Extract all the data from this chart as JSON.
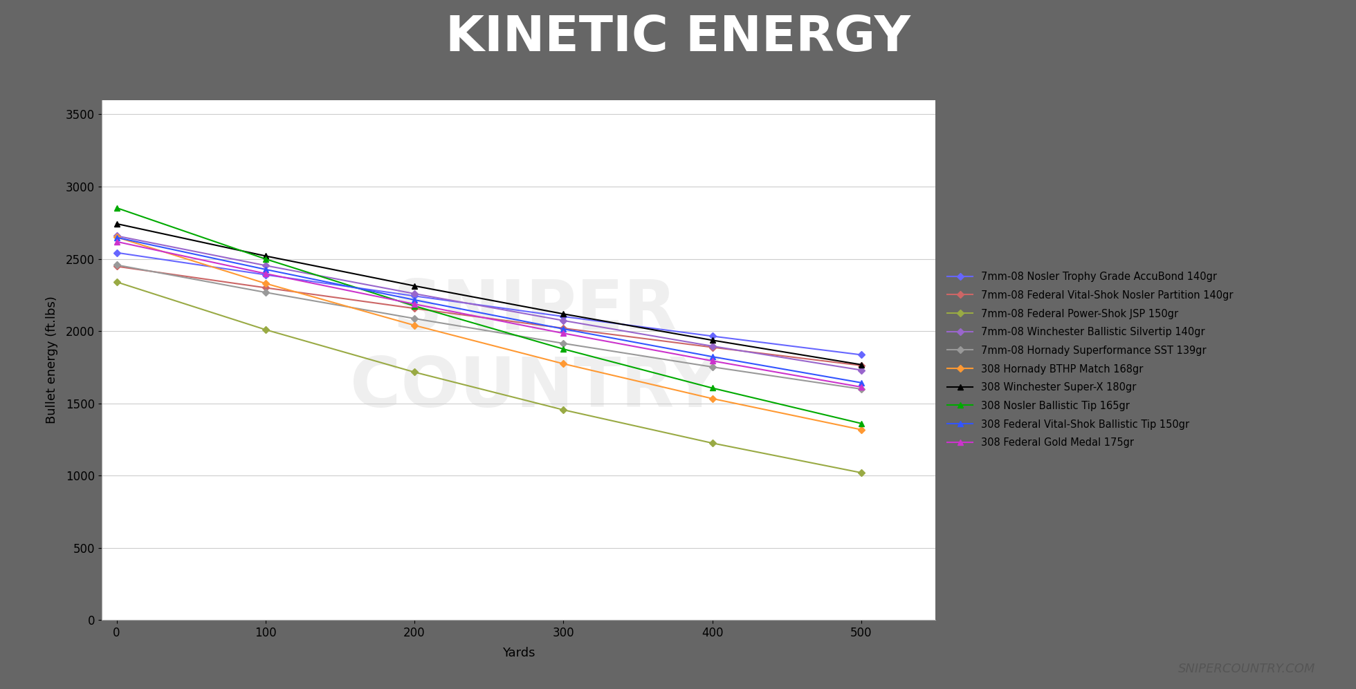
{
  "title": "KINETIC ENERGY",
  "xlabel": "Yards",
  "ylabel": "Bullet energy (ft.lbs)",
  "title_bg_color": "#666666",
  "salmon_bar_color": "#F07070",
  "plot_bg_color": "#ffffff",
  "yards": [
    0,
    100,
    200,
    300,
    400,
    500
  ],
  "series": [
    {
      "label": "7mm-08 Nosler Trophy Grade AccuBond 140gr",
      "color": "#6666FF",
      "marker": "D",
      "markersize": 5,
      "values": [
        2543,
        2390,
        2243,
        2101,
        1965,
        1836
      ]
    },
    {
      "label": "7mm-08 Federal Vital-Shok Nosler Partition 140gr",
      "color": "#CC6666",
      "marker": "D",
      "markersize": 5,
      "values": [
        2448,
        2300,
        2157,
        2020,
        1888,
        1762
      ]
    },
    {
      "label": "7mm-08 Federal Power-Shok JSP 150gr",
      "color": "#99AA44",
      "marker": "D",
      "markersize": 5,
      "values": [
        2340,
        2010,
        1716,
        1455,
        1225,
        1020
      ]
    },
    {
      "label": "7mm-08 Winchester Ballistic Silvertip 140gr",
      "color": "#9966CC",
      "marker": "D",
      "markersize": 5,
      "values": [
        2659,
        2454,
        2259,
        2073,
        1896,
        1730
      ]
    },
    {
      "label": "7mm-08 Hornady Superformance SST 139gr",
      "color": "#999999",
      "marker": "D",
      "markersize": 5,
      "values": [
        2458,
        2268,
        2087,
        1915,
        1752,
        1599
      ]
    },
    {
      "label": "308 Hornady BTHP Match 168gr",
      "color": "#FF9933",
      "marker": "D",
      "markersize": 5,
      "values": [
        2650,
        2330,
        2040,
        1774,
        1533,
        1318
      ]
    },
    {
      "label": "308 Winchester Super-X 180gr",
      "color": "#000000",
      "marker": "^",
      "markersize": 6,
      "values": [
        2743,
        2520,
        2313,
        2119,
        1937,
        1768
      ]
    },
    {
      "label": "308 Nosler Ballistic Tip 165gr",
      "color": "#00AA00",
      "marker": "^",
      "markersize": 6,
      "values": [
        2853,
        2499,
        2174,
        1876,
        1606,
        1361
      ]
    },
    {
      "label": "308 Federal Vital-Shok Ballistic Tip 150gr",
      "color": "#3355FF",
      "marker": "^",
      "markersize": 6,
      "values": [
        2648,
        2427,
        2216,
        2015,
        1823,
        1643
      ]
    },
    {
      "label": "308 Federal Gold Medal 175gr",
      "color": "#CC33CC",
      "marker": "^",
      "markersize": 6,
      "values": [
        2619,
        2398,
        2187,
        1985,
        1794,
        1613
      ]
    }
  ],
  "ylim": [
    0,
    3600
  ],
  "yticks": [
    0,
    500,
    1000,
    1500,
    2000,
    2500,
    3000,
    3500
  ],
  "xticks": [
    0,
    100,
    200,
    300,
    400,
    500
  ],
  "watermark_text": "SNIPER\nCOUNTRY",
  "credit_text": "SNIPERCOUNTRY.COM"
}
